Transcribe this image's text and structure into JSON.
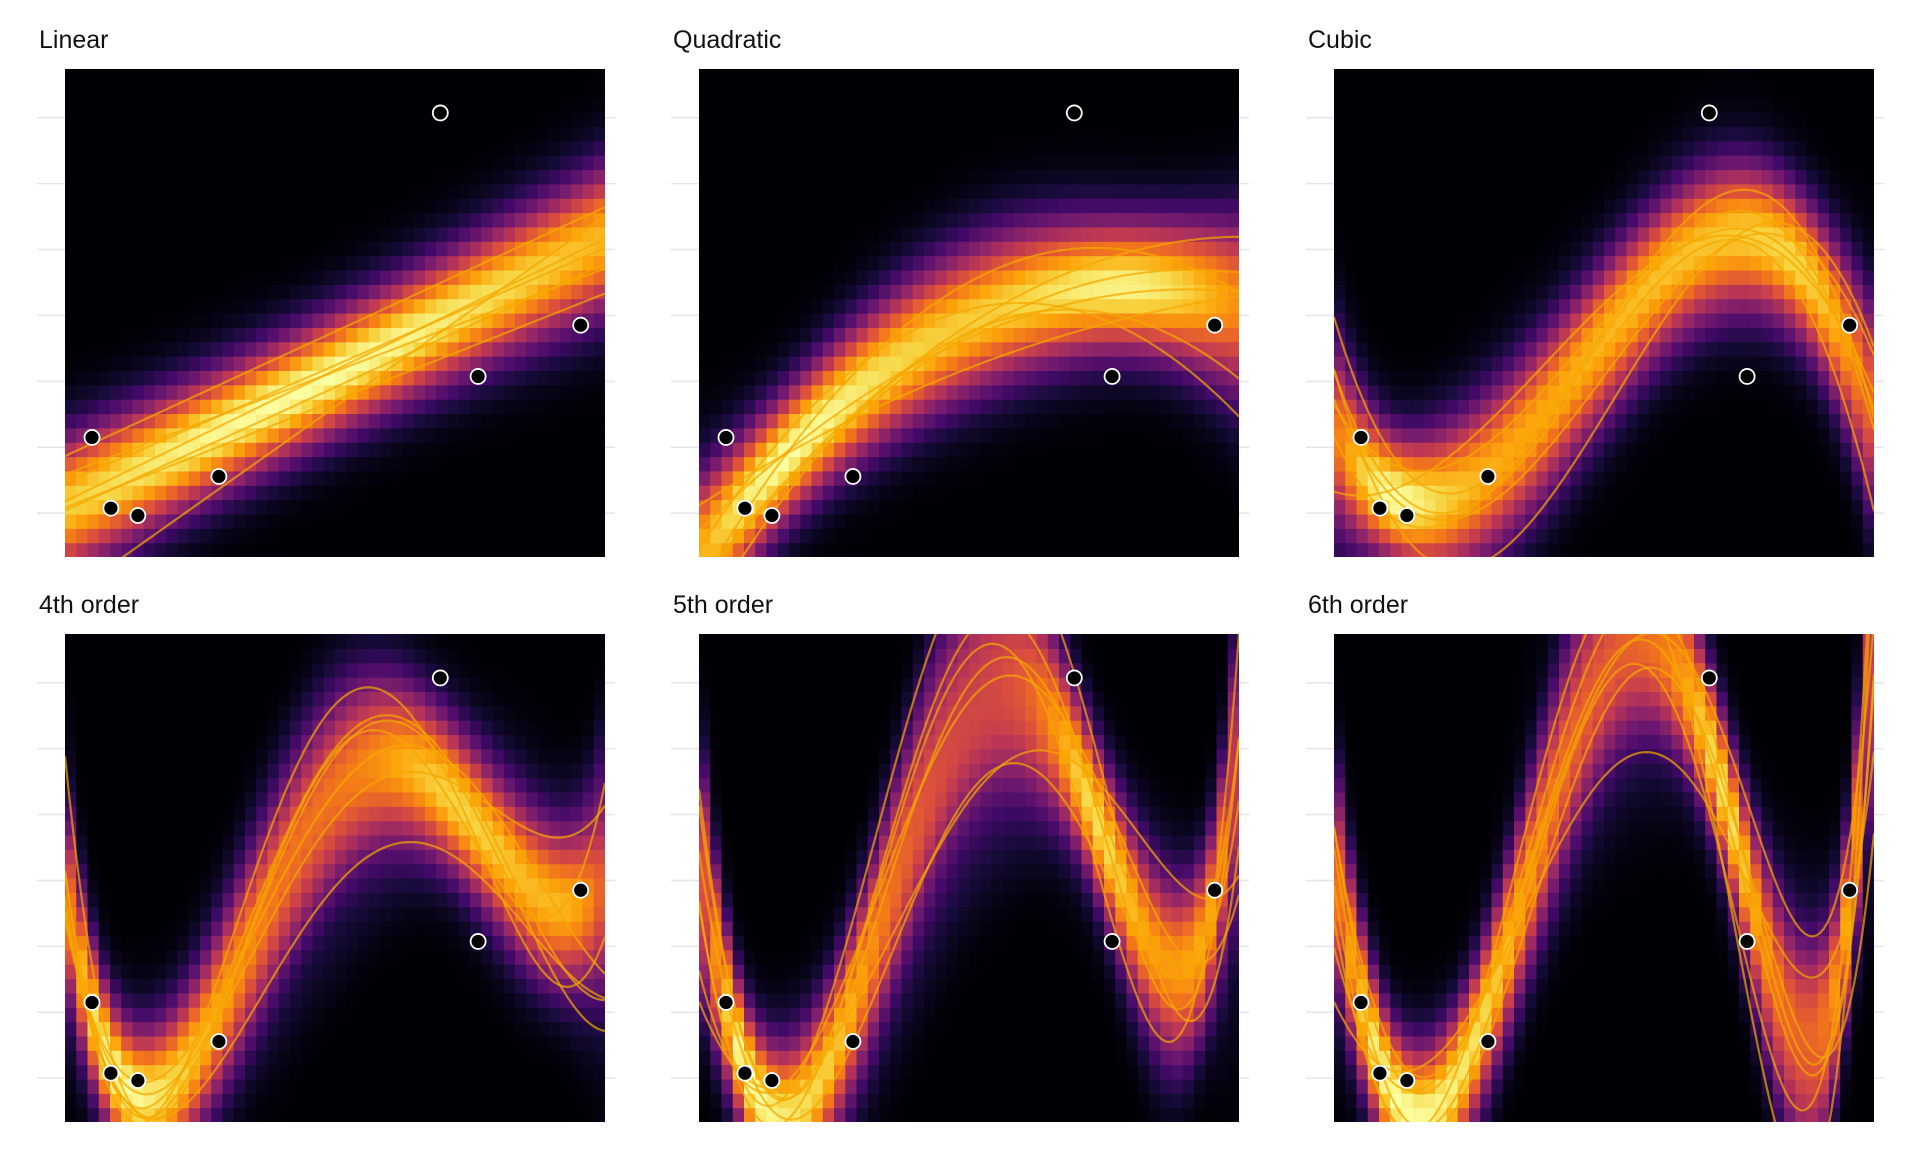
{
  "chart_data": [
    {
      "type": "heatmap",
      "title": "Linear",
      "degree": 1,
      "xlim": [
        0,
        1
      ],
      "ylim": [
        0,
        1
      ],
      "grid": true,
      "axis_labels": false
    },
    {
      "type": "heatmap",
      "title": "Quadratic",
      "degree": 2,
      "xlim": [
        0,
        1
      ],
      "ylim": [
        0,
        1
      ],
      "grid": true,
      "axis_labels": false
    },
    {
      "type": "heatmap",
      "title": "Cubic",
      "degree": 3,
      "xlim": [
        0,
        1
      ],
      "ylim": [
        0,
        1
      ],
      "grid": true,
      "axis_labels": false
    },
    {
      "type": "heatmap",
      "title": "4th order",
      "degree": 4,
      "xlim": [
        0,
        1
      ],
      "ylim": [
        0,
        1
      ],
      "grid": true,
      "axis_labels": false
    },
    {
      "type": "heatmap",
      "title": "5th order",
      "degree": 5,
      "xlim": [
        0,
        1
      ],
      "ylim": [
        0,
        1
      ],
      "grid": true,
      "axis_labels": false
    },
    {
      "type": "heatmap",
      "title": "6th order",
      "degree": 6,
      "xlim": [
        0,
        1
      ],
      "ylim": [
        0,
        1
      ],
      "grid": true,
      "axis_labels": false
    }
  ],
  "points": {
    "x": [
      0.05,
      0.085,
      0.135,
      0.285,
      0.695,
      0.765,
      0.955
    ],
    "y": [
      0.245,
      0.1,
      0.085,
      0.165,
      0.91,
      0.37,
      0.475
    ]
  },
  "colors": {
    "curve": "#f5a800",
    "point_fill": "#000000",
    "point_stroke": "#ffffff",
    "grid": "#e6e6e6",
    "colormap": "inferno"
  }
}
